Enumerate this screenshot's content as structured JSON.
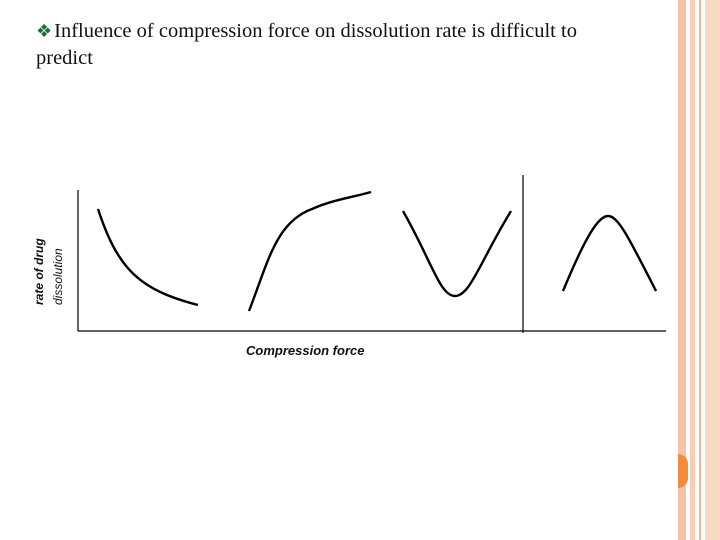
{
  "slide": {
    "bullet_icon": "diamond-bullet-icon",
    "title_line_1": "Influence of compression force on dissolution rate is difficult to",
    "title_line_2": "predict"
  },
  "diagram": {
    "y_label_line_1": "rate of drug",
    "y_label_line_2": "dissolution",
    "x_label": "Compression force",
    "curves": [
      "decreasing",
      "increasing",
      "u-shaped",
      "inverted-u-shaped"
    ]
  },
  "colors": {
    "accent_orange": "#f28b3a",
    "border_peach": "#f5c4a8",
    "bullet_green": "#1f6e38"
  }
}
